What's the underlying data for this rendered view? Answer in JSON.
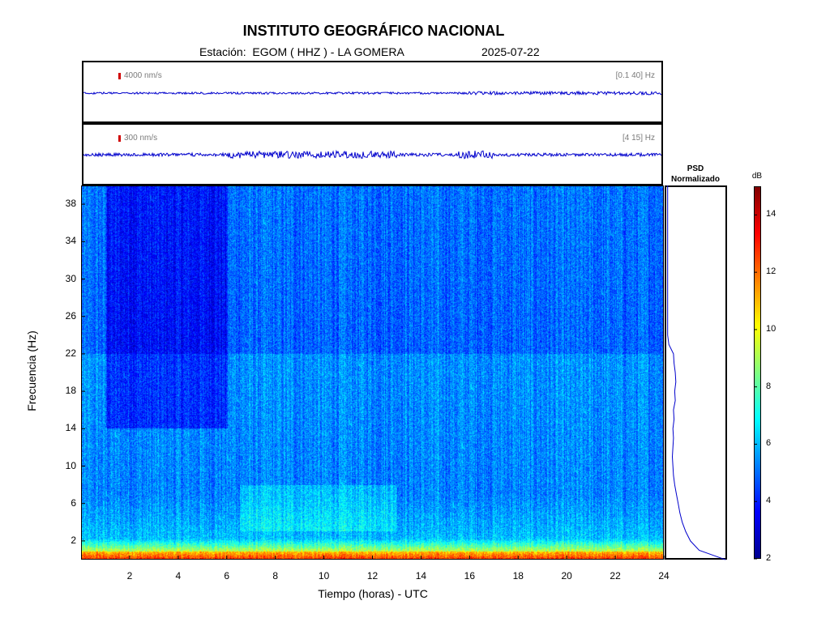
{
  "header": {
    "title": "INSTITUTO GEOGRÁFICO NACIONAL",
    "station_line": "Estación:  EGOM ( HHZ ) - LA GOMERA",
    "date": "2025-07-22"
  },
  "traces": [
    {
      "scale_label": "4000 nm/s",
      "band_label": "[0.1 40] Hz"
    },
    {
      "scale_label": "300 nm/s",
      "band_label": "[4 15] Hz"
    }
  ],
  "psd": {
    "title_line1": "PSD",
    "title_line2": "Normalizado"
  },
  "colorbar": {
    "unit": "dB",
    "ticks": [
      2,
      4,
      6,
      8,
      10,
      12,
      14
    ],
    "range": [
      2,
      15
    ],
    "colormap": [
      "#00008f",
      "#0000ff",
      "#0080ff",
      "#00ffff",
      "#80ff80",
      "#ffff00",
      "#ff8000",
      "#ff0000",
      "#800000"
    ]
  },
  "chart_data": {
    "type": "heatmap",
    "title": "INSTITUTO GEOGRÁFICO NACIONAL",
    "xlabel": "Tiempo (horas) - UTC",
    "ylabel": "Frecuencia  (Hz)",
    "xlim": [
      0,
      24
    ],
    "ylim": [
      0,
      40
    ],
    "x_ticks": [
      2,
      4,
      6,
      8,
      10,
      12,
      14,
      16,
      18,
      20,
      22,
      24
    ],
    "y_ticks": [
      2,
      6,
      10,
      14,
      18,
      22,
      26,
      30,
      34,
      38
    ],
    "psd_profile": {
      "freq": [
        0,
        1,
        2,
        3,
        4,
        5,
        6,
        7,
        8,
        9,
        10,
        11,
        12,
        13,
        14,
        15,
        16,
        17,
        18,
        19,
        20,
        21,
        22,
        23,
        24,
        26,
        28,
        30,
        32,
        34,
        36,
        38,
        40
      ],
      "value": [
        1.0,
        0.55,
        0.4,
        0.32,
        0.26,
        0.22,
        0.19,
        0.16,
        0.13,
        0.11,
        0.1,
        0.09,
        0.1,
        0.11,
        0.1,
        0.12,
        0.11,
        0.14,
        0.13,
        0.15,
        0.14,
        0.12,
        0.11,
        0.03,
        0.01,
        0.01,
        0.01,
        0.01,
        0.01,
        0.01,
        0.01,
        0.01,
        0.01
      ]
    }
  }
}
